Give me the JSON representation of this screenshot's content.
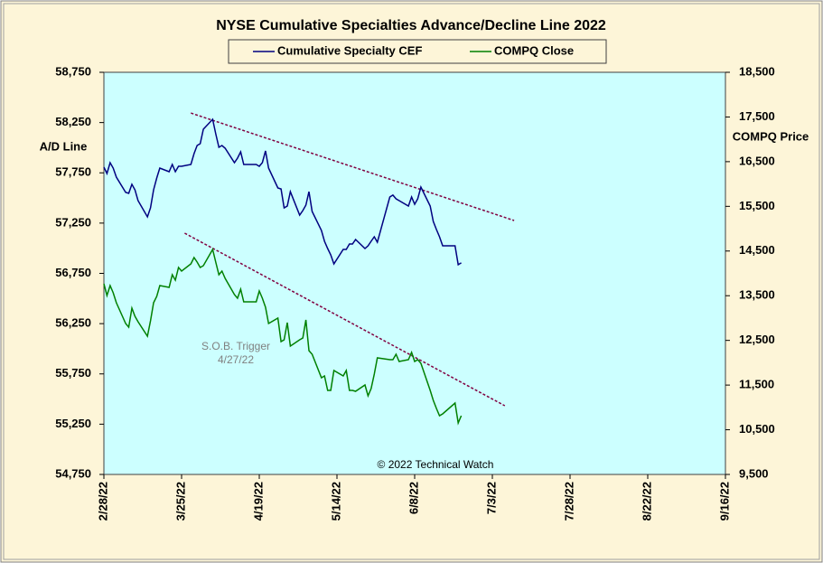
{
  "chart_data": {
    "type": "line",
    "title": "NYSE Cumulative  Specialties  Advance/Decline  Line 2022",
    "ylabel": "A/D Line",
    "y2label": "COMPQ Price",
    "annotation": [
      "S.O.B. Trigger",
      "4/27/22"
    ],
    "credit": "© 2022 Technical Watch",
    "x": [
      "2/28/22",
      "3/1/22",
      "3/2/22",
      "3/3/22",
      "3/4/22",
      "3/7/22",
      "3/8/22",
      "3/9/22",
      "3/10/22",
      "3/11/22",
      "3/14/22",
      "3/15/22",
      "3/16/22",
      "3/17/22",
      "3/18/22",
      "3/21/22",
      "3/22/22",
      "3/23/22",
      "3/24/22",
      "3/25/22",
      "3/28/22",
      "3/29/22",
      "3/30/22",
      "3/31/22",
      "4/1/22",
      "4/4/22",
      "4/5/22",
      "4/6/22",
      "4/7/22",
      "4/8/22",
      "4/11/22",
      "4/12/22",
      "4/13/22",
      "4/14/22",
      "4/18/22",
      "4/19/22",
      "4/20/22",
      "4/21/22",
      "4/22/22",
      "4/25/22",
      "4/26/22",
      "4/27/22",
      "4/28/22",
      "4/29/22",
      "5/2/22",
      "5/3/22",
      "5/4/22",
      "5/5/22",
      "5/6/22",
      "5/9/22",
      "5/10/22",
      "5/11/22",
      "5/12/22",
      "5/13/22",
      "5/16/22",
      "5/17/22",
      "5/18/22",
      "5/19/22",
      "5/20/22",
      "5/23/22",
      "5/24/22",
      "5/25/22",
      "5/26/22",
      "5/27/22",
      "5/31/22",
      "6/1/22",
      "6/2/22",
      "6/3/22",
      "6/6/22",
      "6/7/22",
      "6/8/22",
      "6/9/22",
      "6/10/22",
      "6/13/22",
      "6/14/22",
      "6/15/22",
      "6/16/22",
      "6/17/22",
      "6/21/22",
      "6/22/22",
      "6/23/22"
    ],
    "series": [
      {
        "name": "Cumulative Specialty CEF",
        "color": "#000080",
        "axis": "y",
        "values": [
          57806,
          57743,
          57851,
          57797,
          57707,
          57555,
          57546,
          57636,
          57581,
          57474,
          57312,
          57402,
          57581,
          57698,
          57797,
          57761,
          57833,
          57761,
          57815,
          57815,
          57833,
          57941,
          58022,
          58040,
          58184,
          58283,
          58139,
          58004,
          58022,
          57995,
          57851,
          57896,
          57959,
          57833,
          57833,
          57815,
          57851,
          57968,
          57797,
          57599,
          57590,
          57402,
          57420,
          57563,
          57330,
          57375,
          57429,
          57563,
          57366,
          57177,
          57069,
          56997,
          56934,
          56844,
          56988,
          56988,
          57042,
          57042,
          57087,
          56997,
          57024,
          57069,
          57114,
          57060,
          57510,
          57528,
          57492,
          57474,
          57420,
          57510,
          57438,
          57492,
          57608,
          57420,
          57267,
          57186,
          57114,
          57024,
          57024,
          56836,
          56854
        ]
      },
      {
        "name": "COMPQ Close",
        "color": "#008000",
        "axis": "y2",
        "values": [
          13767,
          13504,
          13727,
          13565,
          13343,
          12878,
          12797,
          13221,
          13039,
          12918,
          12594,
          12938,
          13343,
          13484,
          13727,
          13687,
          13970,
          13848,
          14131,
          14051,
          14212,
          14354,
          14253,
          14131,
          14172,
          14536,
          14253,
          13970,
          14051,
          13889,
          13525,
          13444,
          13646,
          13363,
          13363,
          13606,
          13444,
          13242,
          12878,
          12999,
          12473,
          12513,
          12898,
          12372,
          12513,
          12554,
          12958,
          12271,
          12190,
          11664,
          11705,
          11381,
          11381,
          11826,
          11705,
          11826,
          11381,
          11381,
          11361,
          11502,
          11260,
          11422,
          11745,
          12109,
          12069,
          12069,
          12190,
          12028,
          12069,
          12230,
          12028,
          12069,
          11988,
          11381,
          11158,
          10976,
          10815,
          10855,
          11098,
          10653,
          10815
        ]
      }
    ],
    "trendlines": [
      {
        "color": "#800040",
        "axis": "y",
        "x": [
          "3/28/22",
          "7/10/22"
        ],
        "values": [
          58345,
          57276
        ]
      },
      {
        "color": "#800040",
        "axis": "y2",
        "x": [
          "3/26/22",
          "7/7/22"
        ],
        "values": [
          14900,
          11037
        ]
      }
    ],
    "xlim": [
      "2/28/22",
      "9/16/22"
    ],
    "xticks": [
      "2/28/22",
      "3/25/22",
      "4/19/22",
      "5/14/22",
      "6/8/22",
      "7/3/22",
      "7/28/22",
      "8/22/22",
      "9/16/22"
    ],
    "ylim": [
      54750,
      58750
    ],
    "yticks": [
      {
        "value": 54750,
        "label": "54,750"
      },
      {
        "value": 55250,
        "label": "55,250"
      },
      {
        "value": 55750,
        "label": "55,750"
      },
      {
        "value": 56250,
        "label": "56,250"
      },
      {
        "value": 56750,
        "label": "56,750"
      },
      {
        "value": 57250,
        "label": "57,250"
      },
      {
        "value": 57750,
        "label": "57,750"
      },
      {
        "value": 58250,
        "label": "58,250"
      },
      {
        "value": 58750,
        "label": "58,750"
      }
    ],
    "y2lim": [
      9500,
      18500
    ],
    "y2ticks": [
      {
        "value": 9500,
        "label": "9,500"
      },
      {
        "value": 10500,
        "label": "10,500"
      },
      {
        "value": 11500,
        "label": "11,500"
      },
      {
        "value": 12500,
        "label": "12,500"
      },
      {
        "value": 13500,
        "label": "13,500"
      },
      {
        "value": 14500,
        "label": "14,500"
      },
      {
        "value": 15500,
        "label": "15,500"
      },
      {
        "value": 16500,
        "label": "16,500"
      },
      {
        "value": 17500,
        "label": "17,500"
      },
      {
        "value": 18500,
        "label": "18,500"
      }
    ],
    "background": "#ccffff"
  }
}
